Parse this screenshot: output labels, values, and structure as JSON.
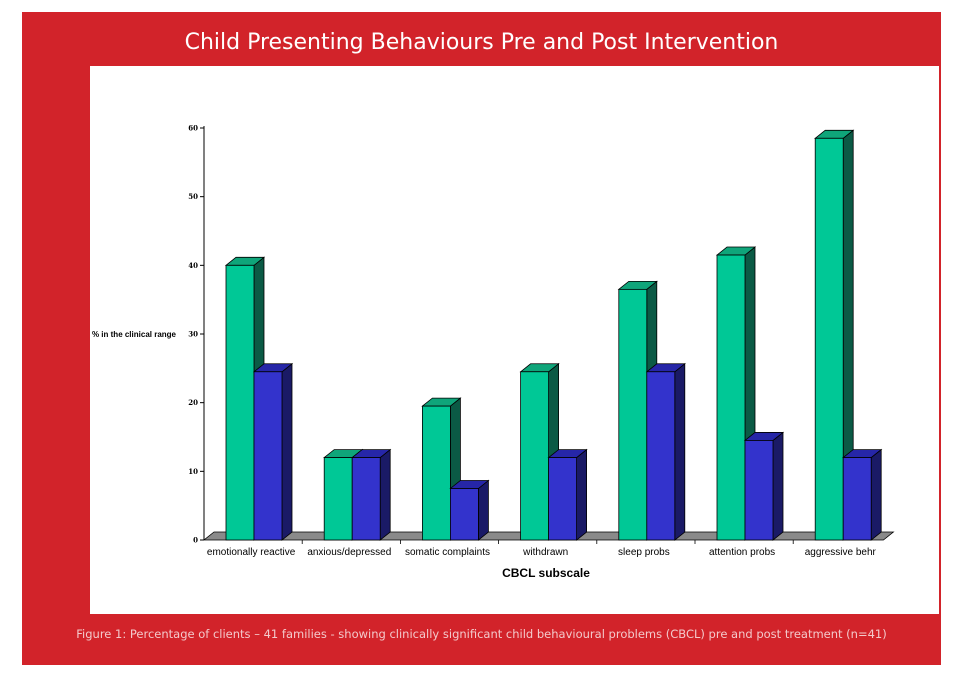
{
  "figure": {
    "title": "Child Presenting Behaviours Pre and Post Intervention",
    "caption": "Figure 1: Percentage of clients – 41 families - showing clinically significant child behavioural problems (CBCL) pre and post treatment (n=41)"
  },
  "colors": {
    "frame": "#d2232a",
    "pre_front": "#00c896",
    "pre_top": "#0fa57a",
    "pre_side": "#0b5a45",
    "post_front": "#3333cc",
    "post_top": "#2626a8",
    "post_side": "#1a1a66",
    "floor": "#8a8a8a"
  },
  "chart_data": {
    "type": "bar",
    "categories": [
      "emotionally reactive",
      "anxious/depressed",
      "somatic complaints",
      "withdrawn",
      "sleep probs",
      "attention probs",
      "aggressive behr"
    ],
    "series": [
      {
        "values": [
          40,
          12,
          19.5,
          24.5,
          36.5,
          41.5,
          58.5
        ]
      },
      {
        "values": [
          24.5,
          12,
          7.5,
          12,
          24.5,
          14.5,
          12
        ]
      }
    ],
    "xlabel": "CBCL subscale",
    "ylabel": "% in the clinical range",
    "ylim": [
      0,
      60
    ],
    "yticks": [
      "0",
      "10",
      "20",
      "30",
      "40",
      "50",
      "60"
    ],
    "three_d": true,
    "grid": false
  }
}
